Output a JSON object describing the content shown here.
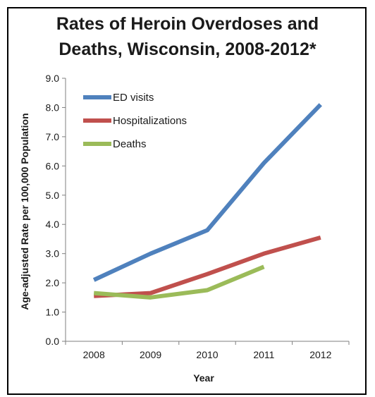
{
  "chart_data": {
    "type": "line",
    "title_line1": "Rates of Heroin Overdoses and",
    "title_line2": "Deaths, Wisconsin, 2008-2012*",
    "xlabel": "Year",
    "ylabel": "Age-adjusted Rate per 100,000 Population",
    "categories": [
      "2008",
      "2009",
      "2010",
      "2011",
      "2012"
    ],
    "y_ticks": [
      "0.0",
      "1.0",
      "2.0",
      "3.0",
      "4.0",
      "5.0",
      "6.0",
      "7.0",
      "8.0",
      "9.0"
    ],
    "ylim": [
      0,
      9
    ],
    "legend_position": "top-left",
    "grid": false,
    "series": [
      {
        "name": "ED visits",
        "color": "#4f81bd",
        "values": [
          2.1,
          3.0,
          3.8,
          6.1,
          8.1
        ]
      },
      {
        "name": "Hospitalizations",
        "color": "#c0504d",
        "values": [
          1.55,
          1.65,
          2.3,
          3.0,
          3.55
        ]
      },
      {
        "name": "Deaths",
        "color": "#9bbb59",
        "values": [
          1.65,
          1.5,
          1.75,
          2.55,
          null
        ]
      }
    ]
  }
}
